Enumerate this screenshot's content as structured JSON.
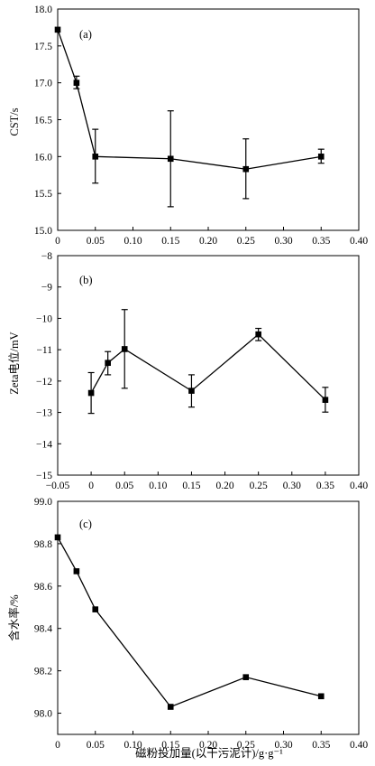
{
  "chart_data": [
    {
      "type": "line",
      "panel_label": "(a)",
      "ylabel": "CST/s",
      "xlabel": "",
      "xlim": [
        0,
        0.4
      ],
      "ylim": [
        15.0,
        18.0
      ],
      "x_ticks": [
        "0",
        "0.05",
        "0.10",
        "0.15",
        "0.20",
        "0.25",
        "0.30",
        "0.35",
        "0.40"
      ],
      "y_ticks": [
        "15.0",
        "15.5",
        "16.0",
        "16.5",
        "17.0",
        "17.5",
        "18.0"
      ],
      "series": [
        {
          "x": [
            0,
            0.025,
            0.05,
            0.15,
            0.25,
            0.35
          ],
          "y": [
            17.72,
            17.0,
            16.0,
            15.97,
            15.83,
            16.0
          ],
          "err_low": [
            17.72,
            16.92,
            15.64,
            15.32,
            15.43,
            15.91
          ],
          "err_high": [
            17.72,
            17.09,
            16.37,
            16.62,
            16.24,
            16.1
          ]
        }
      ]
    },
    {
      "type": "line",
      "panel_label": "(b)",
      "ylabel": "Zeta电位/mV",
      "xlabel": "",
      "xlim": [
        -0.05,
        0.4
      ],
      "ylim": [
        -15,
        -8
      ],
      "x_ticks": [
        "−0.05",
        "0",
        "0.05",
        "0.10",
        "0.15",
        "0.20",
        "0.25",
        "0.30",
        "0.35",
        "0.40"
      ],
      "y_ticks": [
        "−8",
        "−9",
        "−10",
        "−11",
        "−12",
        "−13",
        "−14",
        "−15"
      ],
      "series": [
        {
          "x": [
            0,
            0.025,
            0.05,
            0.15,
            0.25,
            0.35
          ],
          "y": [
            -12.38,
            -11.42,
            -10.98,
            -12.31,
            -10.51,
            -12.6
          ],
          "err_low": [
            -13.03,
            -11.8,
            -12.23,
            -12.83,
            -10.71,
            -12.99
          ],
          "err_high": [
            -11.73,
            -11.06,
            -9.72,
            -11.8,
            -10.32,
            -12.2
          ]
        }
      ]
    },
    {
      "type": "line",
      "panel_label": "(c)",
      "ylabel": "含水率/%",
      "xlabel": "磁粉投加量(以干污泥计)/g·g⁻¹",
      "xlim": [
        0,
        0.4
      ],
      "ylim": [
        97.9,
        99.0
      ],
      "x_ticks": [
        "0",
        "0.05",
        "0.10",
        "0.15",
        "0.20",
        "0.25",
        "0.30",
        "0.35",
        "0.40"
      ],
      "y_ticks": [
        "98.0",
        "98.2",
        "98.4",
        "98.6",
        "98.8",
        "99.0"
      ],
      "series": [
        {
          "x": [
            0,
            0.025,
            0.05,
            0.15,
            0.25,
            0.35
          ],
          "y": [
            98.83,
            98.67,
            98.49,
            98.03,
            98.17,
            98.08
          ]
        }
      ]
    }
  ]
}
